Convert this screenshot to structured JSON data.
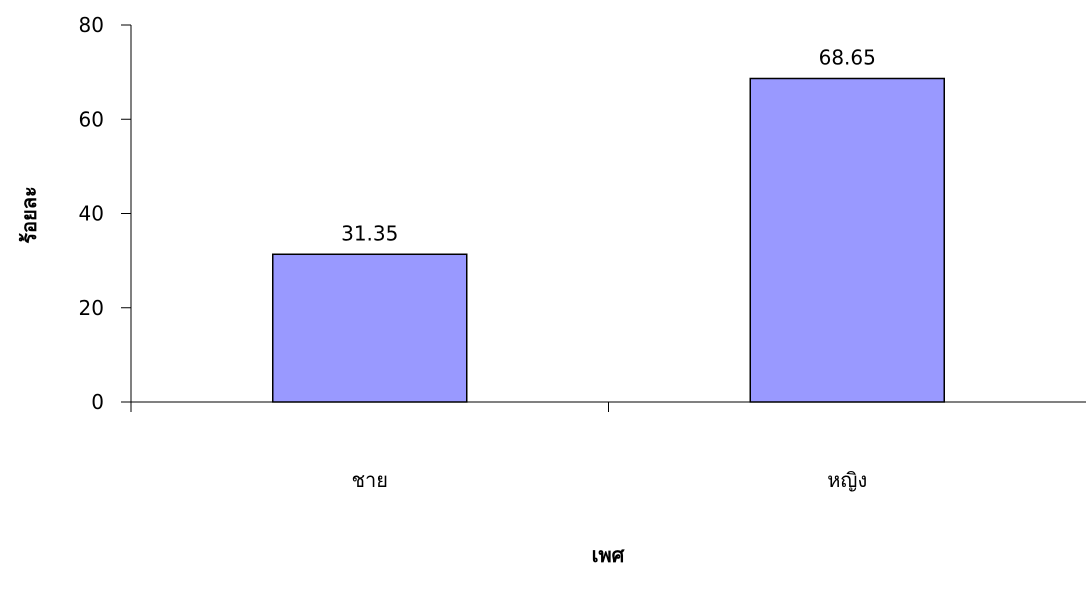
{
  "chart_data": {
    "type": "bar",
    "title": "",
    "xlabel": "เพศ",
    "ylabel": "ร้อยละ",
    "categories": [
      "ชาย",
      "หญิง"
    ],
    "values": [
      31.35,
      68.65
    ],
    "data_labels": [
      "31.35",
      "68.65"
    ],
    "ylim": [
      0,
      80
    ],
    "yticks": [
      0,
      20,
      40,
      60,
      80
    ],
    "ytick_labels": [
      "0",
      "20",
      "40",
      "60",
      "80"
    ],
    "grid": false,
    "legend": "none",
    "bar_color": "#9999FF",
    "bar_edge_color": "#000000"
  }
}
